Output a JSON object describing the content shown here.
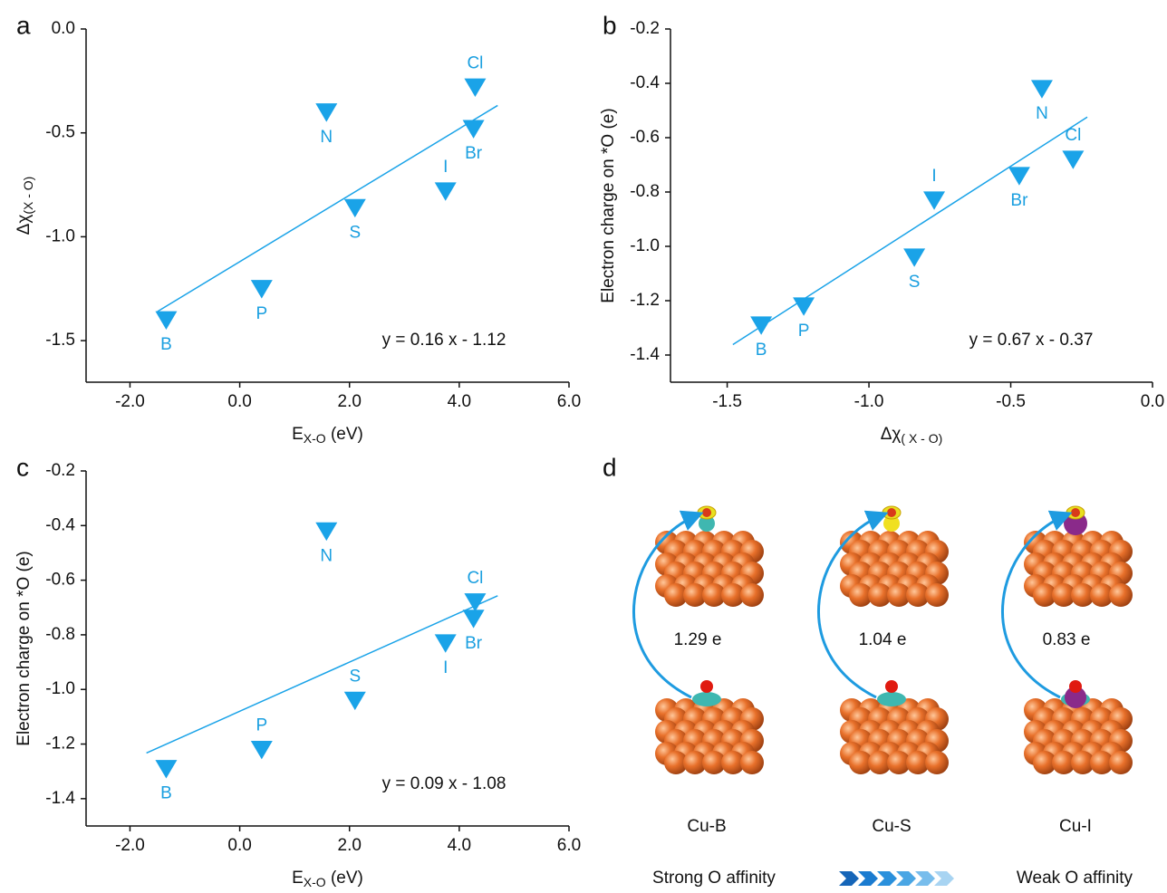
{
  "chart_data": [
    {
      "type": "scatter",
      "panel": "a",
      "xlabel": "E",
      "xlabel_sub": "X-O",
      "xlabel_unit": " (eV)",
      "ylabel": "Δχ",
      "ylabel_sub": "(X - O)",
      "xlim": [
        -2.8,
        6.0
      ],
      "ylim": [
        -1.7,
        0.0
      ],
      "xticks": [
        {
          "value": -2,
          "label": "-2.0"
        },
        {
          "value": 0,
          "label": "0.0"
        },
        {
          "value": 2,
          "label": "2.0"
        },
        {
          "value": 4,
          "label": "4.0"
        },
        {
          "value": 6,
          "label": "6.0"
        }
      ],
      "yticks": [
        {
          "value": 0,
          "label": "0.0"
        },
        -0.5,
        {
          "value": -1,
          "label": "-1.0"
        },
        -1.5
      ],
      "color": "#1aa3e8",
      "point_labels": [
        "B",
        "P",
        "N",
        "S",
        "I",
        "Br",
        "Cl"
      ],
      "x": [
        -1.34,
        0.4,
        1.58,
        2.1,
        3.75,
        4.26,
        4.29
      ],
      "values": [
        -1.4,
        -1.25,
        -0.4,
        -0.86,
        -0.78,
        -0.48,
        -0.28
      ],
      "fit": {
        "x": [
          -1.5,
          4.7
        ],
        "values": [
          -1.36,
          -0.368
        ]
      },
      "annotation": "y = 0.16 x - 1.12"
    },
    {
      "type": "scatter",
      "panel": "b",
      "xlabel": "Δχ",
      "xlabel_sub": "( X - O)",
      "ylabel": "Electron charge on *O (e)",
      "xlim": [
        -1.7,
        0.0
      ],
      "ylim": [
        -1.5,
        -0.2
      ],
      "xticks": [
        -1.5,
        {
          "value": -1,
          "label": "-1.0"
        },
        -0.5,
        {
          "value": 0,
          "label": "0.0"
        }
      ],
      "yticks": [
        -0.2,
        -0.4,
        -0.6,
        -0.8,
        {
          "value": -1,
          "label": "-1.0"
        },
        -1.2,
        -1.4
      ],
      "color": "#1aa3e8",
      "point_labels": [
        "B",
        "P",
        "S",
        "I",
        "Br",
        "N",
        "Cl"
      ],
      "x": [
        -1.38,
        -1.23,
        -0.84,
        -0.77,
        -0.47,
        -0.39,
        -0.28
      ],
      "values": [
        -1.29,
        -1.22,
        -1.04,
        -0.83,
        -0.74,
        -0.42,
        -0.68
      ],
      "fit": {
        "x": [
          -1.48,
          -0.23
        ],
        "values": [
          -1.3616,
          -0.5241
        ]
      },
      "annotation": "y = 0.67 x - 0.37"
    },
    {
      "type": "scatter",
      "panel": "c",
      "xlabel": "E",
      "xlabel_sub": "X-O",
      "xlabel_unit": " (eV)",
      "ylabel": "Electron charge on *O (e)",
      "xlim": [
        -2.8,
        6.0
      ],
      "ylim": [
        -1.5,
        -0.2
      ],
      "xticks": [
        {
          "value": -2,
          "label": "-2.0"
        },
        {
          "value": 0,
          "label": "0.0"
        },
        {
          "value": 2,
          "label": "2.0"
        },
        {
          "value": 4,
          "label": "4.0"
        },
        {
          "value": 6,
          "label": "6.0"
        }
      ],
      "yticks": [
        -0.2,
        -0.4,
        -0.6,
        -0.8,
        {
          "value": -1,
          "label": "-1.0"
        },
        -1.2,
        -1.4
      ],
      "color": "#1aa3e8",
      "point_labels": [
        "B",
        "P",
        "N",
        "S",
        "I",
        "Br",
        "Cl"
      ],
      "x": [
        -1.34,
        0.4,
        1.58,
        2.1,
        3.75,
        4.26,
        4.29
      ],
      "values": [
        -1.29,
        -1.22,
        -0.42,
        -1.04,
        -0.83,
        -0.74,
        -0.68
      ],
      "fit": {
        "x": [
          -1.7,
          4.7
        ],
        "values": [
          -1.233,
          -0.657
        ]
      },
      "annotation": "y = 0.09 x - 1.08"
    }
  ],
  "diagram": {
    "panel": "d",
    "charges": [
      "1.29 e",
      "1.04 e",
      "0.83 e"
    ],
    "systems": [
      "Cu-B",
      "Cu-S",
      "Cu-I"
    ],
    "left_caption": "Strong O affinity",
    "right_caption": "Weak O affinity"
  }
}
